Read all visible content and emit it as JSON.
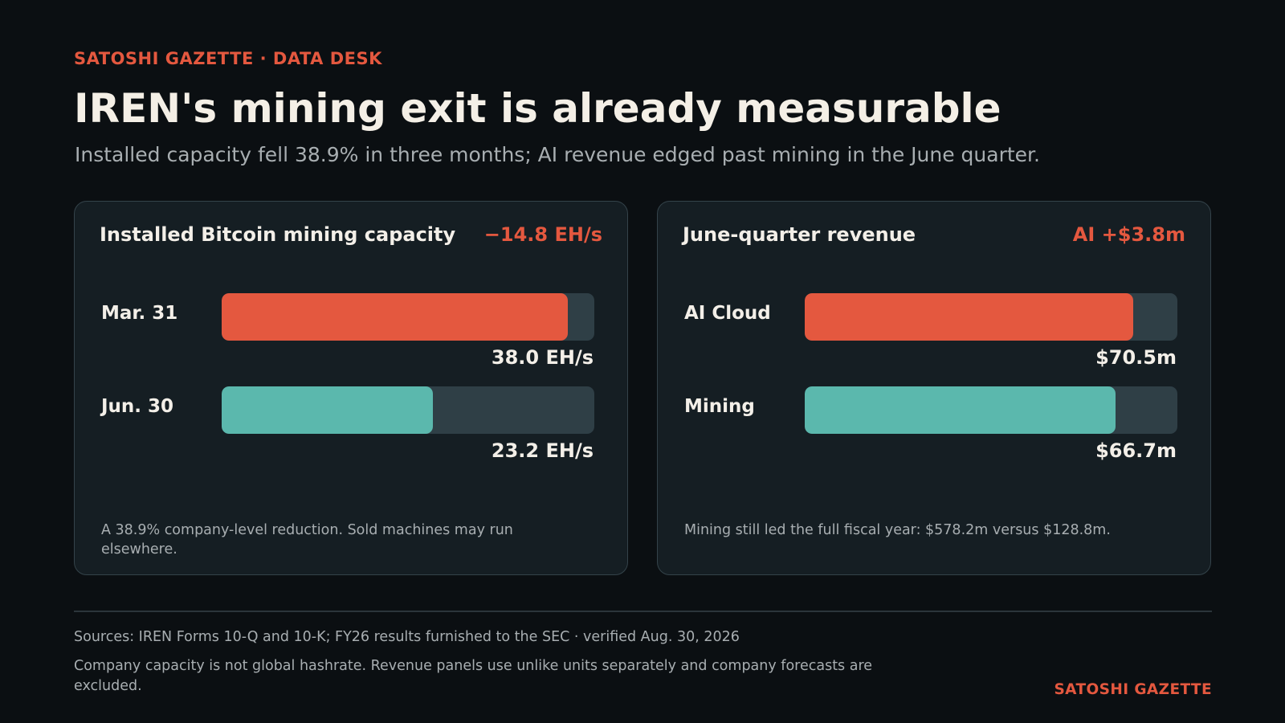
{
  "kicker": "SATOSHI GAZETTE · DATA DESK",
  "headline": "IREN's mining exit is already measurable",
  "dek": "Installed capacity fell 38.9% in three months; AI revenue edged past mining in the June quarter.",
  "colors": {
    "accent": "#e4583f",
    "teal": "#5bb8ad",
    "track": "#2f3f46",
    "background": "#0b0f12",
    "panel": "#151e23"
  },
  "chart_data": [
    {
      "type": "bar",
      "orientation": "horizontal",
      "title": "Installed Bitcoin mining capacity",
      "delta": "−14.8 EH/s",
      "categories": [
        "Mar. 31",
        "Jun. 30"
      ],
      "values": [
        38.0,
        23.2
      ],
      "value_labels": [
        "38.0 EH/s",
        "23.2 EH/s"
      ],
      "unit": "EH/s",
      "xlim": [
        0,
        40.9
      ],
      "colors": [
        "#e4583f",
        "#5bb8ad"
      ],
      "note": "A 38.9% company-level reduction. Sold machines may run elsewhere."
    },
    {
      "type": "bar",
      "orientation": "horizontal",
      "title": "June-quarter revenue",
      "delta": "AI +$3.8m",
      "categories": [
        "AI Cloud",
        "Mining"
      ],
      "values": [
        70.5,
        66.7
      ],
      "value_labels": [
        "$70.5m",
        "$66.7m"
      ],
      "unit": "$m",
      "xlim": [
        0,
        80
      ],
      "colors": [
        "#e4583f",
        "#5bb8ad"
      ],
      "note": "Mining still led the full fiscal year: $578.2m versus $128.8m."
    }
  ],
  "footer": {
    "sources": "Sources: IREN Forms 10-Q and 10-K; FY26 results furnished to the SEC · verified Aug. 30, 2026",
    "disclaimer": "Company capacity is not global hashrate. Revenue panels use unlike units separately and company forecasts are excluded.",
    "brand": "SATOSHI GAZETTE"
  }
}
